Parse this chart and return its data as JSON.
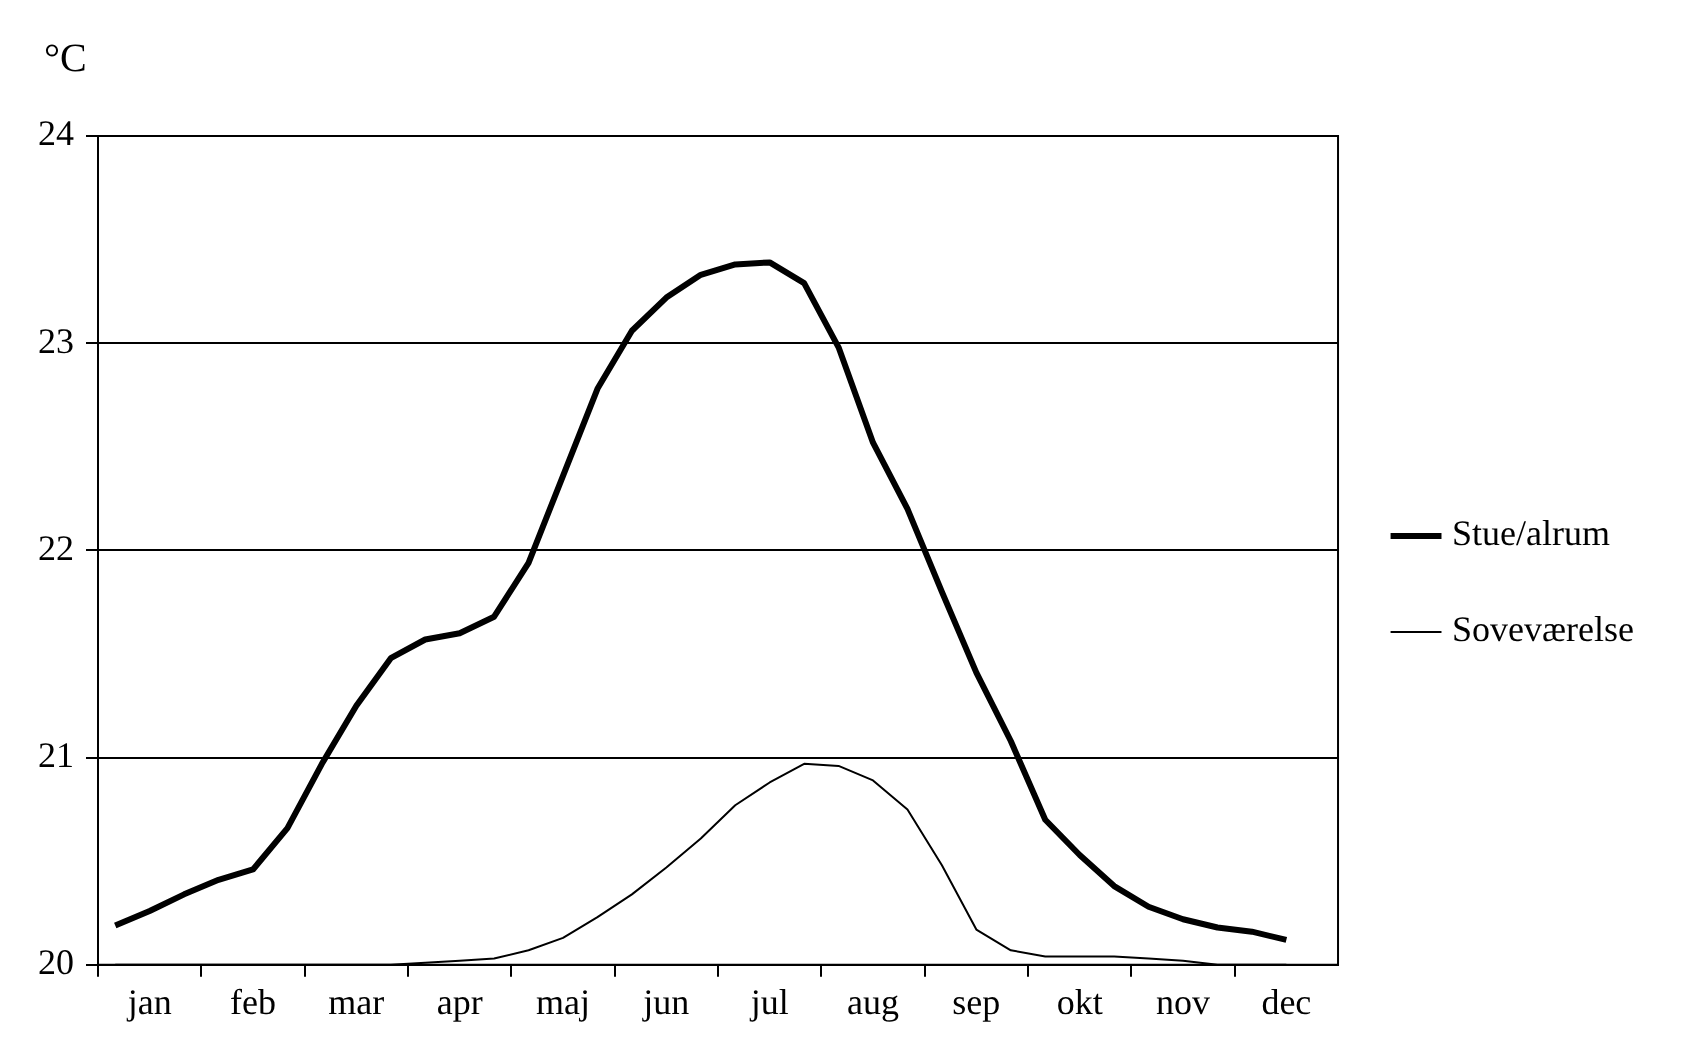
{
  "chart_data": {
    "type": "line",
    "ylabel": "°C",
    "categories": [
      null,
      "jan",
      null,
      null,
      "feb",
      null,
      null,
      "mar",
      null,
      null,
      "apr",
      null,
      null,
      "maj",
      null,
      null,
      "jun",
      null,
      null,
      "jul",
      null,
      null,
      "aug",
      null,
      null,
      "sep",
      null,
      null,
      "okt",
      null,
      null,
      "nov",
      null,
      null,
      "dec",
      null
    ],
    "ylim": [
      20,
      24
    ],
    "yticks": [
      20,
      21,
      22,
      23,
      24
    ],
    "grid": "y",
    "legend": "right",
    "marker": "none",
    "series": [
      {
        "name": "Stue/alrum",
        "color": "#000000",
        "values": [
          20.19,
          20.26,
          20.34,
          20.41,
          20.46,
          20.66,
          20.97,
          21.25,
          21.48,
          21.57,
          21.6,
          21.68,
          21.94,
          22.36,
          22.78,
          23.06,
          23.22,
          23.33,
          23.38,
          23.39,
          23.29,
          22.98,
          22.52,
          22.2,
          21.8,
          21.41,
          21.08,
          20.7,
          20.53,
          20.38,
          20.28,
          20.22,
          20.18,
          20.16,
          20.12,
          null
        ]
      },
      {
        "name": "Soveværelse",
        "color": "#000000",
        "values": [
          20,
          20,
          20,
          20,
          20,
          20,
          20,
          20,
          20,
          20.01,
          20.02,
          20.03,
          20.07,
          20.13,
          20.23,
          20.34,
          20.47,
          20.61,
          20.77,
          20.88,
          20.97,
          20.96,
          20.89,
          20.75,
          20.48,
          20.17,
          20.07,
          20.04,
          20.04,
          20.04,
          20.03,
          20.02,
          20,
          20,
          20,
          null
        ]
      }
    ]
  }
}
